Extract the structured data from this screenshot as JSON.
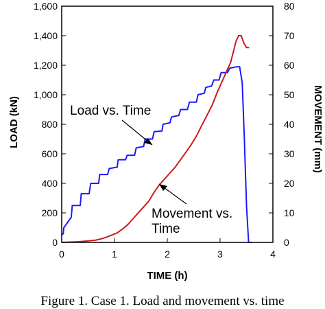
{
  "caption": "Figure 1. Case 1. Load and movement vs. time",
  "colors": {
    "load": "#1a1aff",
    "movement": "#cc1a1a",
    "axis": "#000000"
  },
  "chart_data": {
    "type": "line",
    "xlabel": "TIME (h)",
    "ylabel": "LOAD (kN)",
    "y2label": "MOVEMENT (mm)",
    "xlim": [
      0,
      4
    ],
    "ylim": [
      0,
      1600
    ],
    "y2lim": [
      0,
      80
    ],
    "x_ticks": [
      "0",
      "1",
      "2",
      "3",
      "4"
    ],
    "y_ticks": [
      "0",
      "200",
      "400",
      "600",
      "800",
      "1,000",
      "1,200",
      "1,400",
      "1,600"
    ],
    "y2_ticks": [
      "0",
      "10",
      "20",
      "30",
      "40",
      "50",
      "60",
      "70",
      "80"
    ],
    "grid": false,
    "series": [
      {
        "name": "Load vs. Time",
        "axis": "left",
        "x": [
          0,
          0.03,
          0.04,
          0.18,
          0.2,
          0.35,
          0.37,
          0.52,
          0.55,
          0.7,
          0.72,
          0.87,
          0.9,
          1.05,
          1.07,
          1.21,
          1.24,
          1.38,
          1.41,
          1.55,
          1.58,
          1.72,
          1.75,
          1.9,
          1.92,
          2.05,
          2.08,
          2.22,
          2.25,
          2.38,
          2.42,
          2.55,
          2.58,
          2.7,
          2.73,
          2.84,
          2.88,
          2.98,
          3.02,
          3.14,
          3.18,
          3.32,
          3.35,
          3.37,
          3.42,
          3.46,
          3.5,
          3.54,
          3.56,
          3.6
        ],
        "y": [
          50,
          60,
          100,
          170,
          250,
          250,
          330,
          330,
          400,
          400,
          460,
          460,
          500,
          510,
          560,
          560,
          590,
          590,
          640,
          650,
          700,
          700,
          750,
          755,
          800,
          810,
          850,
          860,
          900,
          900,
          950,
          950,
          1000,
          1010,
          1050,
          1060,
          1100,
          1100,
          1150,
          1150,
          1180,
          1190,
          1190,
          1190,
          1080,
          700,
          250,
          0,
          0,
          0
        ]
      },
      {
        "name": "Movement vs. Time",
        "axis": "right",
        "x": [
          0,
          0.3,
          0.5,
          0.65,
          0.75,
          0.85,
          0.95,
          1.05,
          1.15,
          1.25,
          1.35,
          1.45,
          1.55,
          1.65,
          1.75,
          1.85,
          1.95,
          2.05,
          2.15,
          2.25,
          2.35,
          2.45,
          2.55,
          2.65,
          2.75,
          2.85,
          2.95,
          3.05,
          3.1,
          3.2,
          3.25,
          3.3,
          3.35,
          3.4,
          3.45,
          3.5,
          3.55
        ],
        "y": [
          0,
          0.2,
          0.5,
          0.8,
          1.2,
          1.8,
          2.5,
          3.2,
          4.5,
          6,
          8,
          10,
          12,
          14,
          17,
          19.5,
          21.5,
          23.5,
          25.5,
          28,
          30.5,
          33,
          36,
          39.5,
          43,
          46.5,
          51,
          55,
          57,
          61,
          64.5,
          68,
          70,
          70,
          67.5,
          66,
          66
        ]
      }
    ],
    "annotations": [
      {
        "text": "Load vs. Time",
        "target": "Load vs. Time"
      },
      {
        "text": "Movement vs.",
        "text2": "Time",
        "target": "Movement vs. Time"
      }
    ]
  }
}
